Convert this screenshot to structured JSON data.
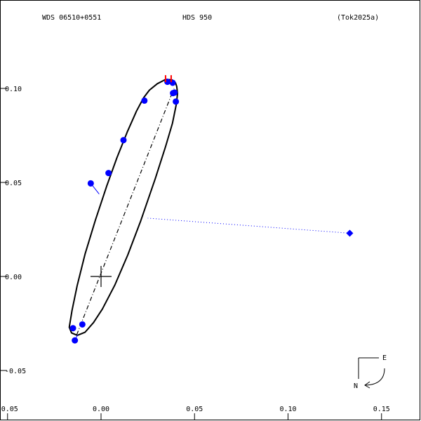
{
  "header": {
    "wds_id": "WDS 06510+0551",
    "discoverer": "HDS 950",
    "reference": "(Tok2025a)"
  },
  "compass": {
    "east_label": "E",
    "north_label": "N"
  },
  "chart_data": {
    "type": "scatter",
    "xlim": [
      -0.05,
      0.17
    ],
    "ylim": [
      -0.07,
      0.13
    ],
    "x_ticks": [
      {
        "value": -0.05,
        "label": "-0.05"
      },
      {
        "value": 0.0,
        "label": "0.00"
      },
      {
        "value": 0.05,
        "label": "0.05"
      },
      {
        "value": 0.1,
        "label": "0.10"
      },
      {
        "value": 0.15,
        "label": "0.15"
      }
    ],
    "y_ticks": [
      {
        "value": 0.1,
        "label": "0.10"
      },
      {
        "value": 0.05,
        "label": "0.05"
      },
      {
        "value": 0.0,
        "label": "0.00"
      },
      {
        "value": -0.05,
        "label": "-0.05"
      }
    ],
    "primary_star": {
      "x": 0.0,
      "y": 0.0
    },
    "line_of_nodes": {
      "from": [
        -0.013,
        -0.031
      ],
      "to": [
        0.039,
        0.1
      ]
    },
    "orbit_ellipse": [
      [
        0.0346,
        0.1048
      ],
      [
        0.0301,
        0.1025
      ],
      [
        0.0259,
        0.0991
      ],
      [
        0.0228,
        0.0951
      ],
      [
        0.019,
        0.088
      ],
      [
        0.014,
        0.0768
      ],
      [
        0.0085,
        0.0632
      ],
      [
        0.003,
        0.048
      ],
      [
        -0.003,
        0.03
      ],
      [
        -0.0085,
        0.012
      ],
      [
        -0.0128,
        -0.005
      ],
      [
        -0.0155,
        -0.018
      ],
      [
        -0.017,
        -0.027
      ],
      [
        -0.0158,
        -0.03
      ],
      [
        -0.0127,
        -0.0313
      ],
      [
        -0.0086,
        -0.0297
      ],
      [
        -0.004,
        -0.0245
      ],
      [
        0.0007,
        -0.0173
      ],
      [
        0.0073,
        -0.0047
      ],
      [
        0.0143,
        0.0114
      ],
      [
        0.0213,
        0.0298
      ],
      [
        0.029,
        0.052
      ],
      [
        0.0345,
        0.069
      ],
      [
        0.0382,
        0.0815
      ],
      [
        0.0403,
        0.0918
      ],
      [
        0.0409,
        0.0973
      ],
      [
        0.0405,
        0.101
      ],
      [
        0.0398,
        0.103
      ],
      [
        0.038,
        0.1045
      ],
      [
        0.0346,
        0.1048
      ]
    ],
    "measurements": [
      {
        "x": 0.0355,
        "y": 0.1035,
        "ox": 0.0355,
        "oy": 0.104
      },
      {
        "x": 0.0383,
        "y": 0.103,
        "ox": 0.0385,
        "oy": 0.1035
      },
      {
        "x": 0.0385,
        "y": 0.0975,
        "ox": 0.039,
        "oy": 0.0978
      },
      {
        "x": 0.0393,
        "y": 0.0978,
        "ox": 0.0395,
        "oy": 0.098
      },
      {
        "x": 0.04,
        "y": 0.093,
        "ox": 0.0403,
        "oy": 0.093
      },
      {
        "x": 0.0232,
        "y": 0.0935,
        "ox": 0.0236,
        "oy": 0.0936
      },
      {
        "x": 0.012,
        "y": 0.0725,
        "ox": 0.0123,
        "oy": 0.0726
      },
      {
        "x": 0.004,
        "y": 0.055,
        "ox": 0.0043,
        "oy": 0.0553
      },
      {
        "x": -0.0055,
        "y": 0.0495,
        "ox": -0.001,
        "oy": 0.0438
      },
      {
        "x": -0.015,
        "y": -0.0275,
        "ox": -0.0157,
        "oy": -0.0278
      },
      {
        "x": -0.01,
        "y": -0.0255,
        "ox": -0.0095,
        "oy": -0.0262
      },
      {
        "x": -0.014,
        "y": -0.034,
        "ox": -0.0125,
        "oy": -0.031
      },
      {
        "x": 0.133,
        "y": 0.023,
        "ox": 0.025,
        "oy": 0.031,
        "dotted": true
      }
    ],
    "red_marks": [
      {
        "x": 0.0345,
        "y": 0.1048
      },
      {
        "x": 0.0375,
        "y": 0.1048
      }
    ]
  }
}
